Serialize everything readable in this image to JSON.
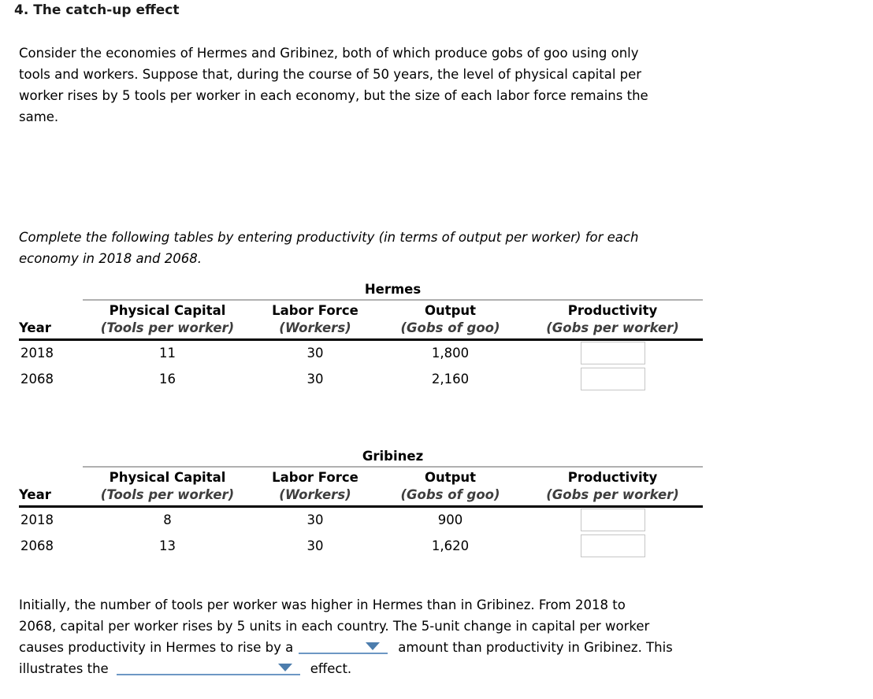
{
  "page": {
    "title": "4. The catch-up effect"
  },
  "intro": {
    "lines": [
      "Consider the economies of Hermes and Gribinez, both of which produce gobs of goo using only",
      "tools and workers. Suppose that, during the course of 50 years, the level of physical capital per",
      "worker rises by 5 tools per worker in each economy, but the size of each labor force remains the",
      "same."
    ]
  },
  "instruction": {
    "lines": [
      "Complete the following tables by entering productivity (in terms of output per worker) for each",
      "economy in 2018 and 2068."
    ]
  },
  "tables": [
    {
      "title": "Hermes",
      "year_header": "Year",
      "columns": [
        {
          "label": "Physical Capital",
          "sublabel": "(Tools per worker)"
        },
        {
          "label": "Labor Force",
          "sublabel": "(Workers)"
        },
        {
          "label": "Output",
          "sublabel": "(Gobs of goo)"
        },
        {
          "label": "Productivity",
          "sublabel": "(Gobs per worker)"
        }
      ],
      "rows": [
        {
          "year": "2018",
          "physical_capital": "11",
          "labor_force": "30",
          "output": "1,800",
          "productivity_value": ""
        },
        {
          "year": "2068",
          "physical_capital": "16",
          "labor_force": "30",
          "output": "2,160",
          "productivity_value": ""
        }
      ]
    },
    {
      "title": "Gribinez",
      "year_header": "Year",
      "columns": [
        {
          "label": "Physical Capital",
          "sublabel": "(Tools per worker)"
        },
        {
          "label": "Labor Force",
          "sublabel": "(Workers)"
        },
        {
          "label": "Output",
          "sublabel": "(Gobs of goo)"
        },
        {
          "label": "Productivity",
          "sublabel": "(Gobs per worker)"
        }
      ],
      "rows": [
        {
          "year": "2018",
          "physical_capital": "8",
          "labor_force": "30",
          "output": "900",
          "productivity_value": ""
        },
        {
          "year": "2068",
          "physical_capital": "13",
          "labor_force": "30",
          "output": "1,620",
          "productivity_value": ""
        }
      ]
    }
  ],
  "conclusion": {
    "line1": "Initially, the number of tools per worker was higher in Hermes than in Gribinez. From 2018 to",
    "line2": "2068, capital per worker rises by 5 units in each country. The 5-unit change in capital per worker",
    "line3_before": "causes productivity in Hermes to rise by a",
    "dropdown1_value": "",
    "line3_after": "amount than productivity in Gribinez. This",
    "line4_before": "illustrates the",
    "dropdown2_value": "",
    "line4_after": "effect."
  },
  "colors": {
    "dropdown_underline": "#6d97c4",
    "dropdown_caret": "#4c7dad",
    "input_border": "#c6c6c6",
    "table_title_rule": "#b0b0b0",
    "header_rule": "#000000",
    "subheader_text": "#3e3e3e"
  }
}
